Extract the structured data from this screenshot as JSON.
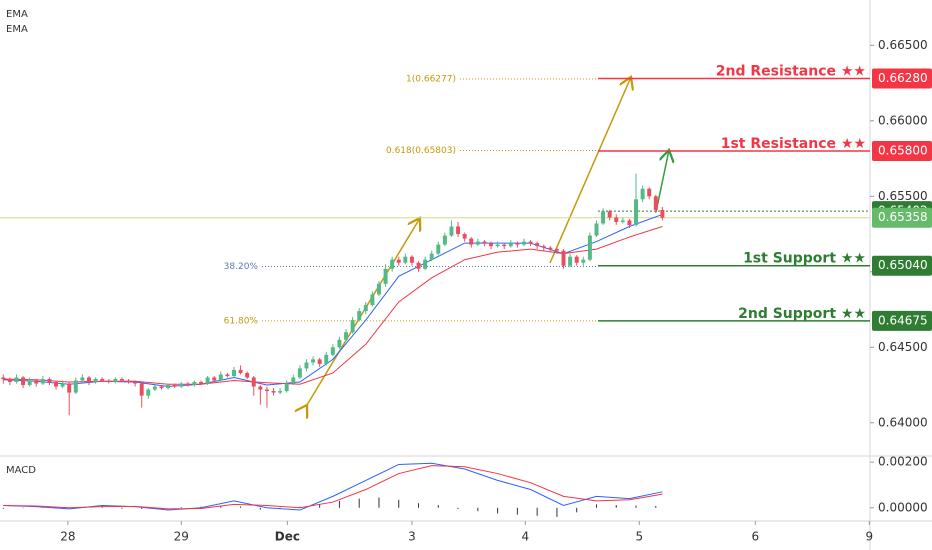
{
  "chart_data": {
    "type": "candlestick",
    "indicator_labels": [
      "EMA",
      "EMA"
    ],
    "xlim": [
      -0.5,
      131.5
    ],
    "xticks": [
      {
        "value": 9.8,
        "label": "28"
      },
      {
        "value": 27,
        "label": "29"
      },
      {
        "value": 43.1,
        "label": "Dec"
      },
      {
        "value": 62,
        "label": "3"
      },
      {
        "value": 79.2,
        "label": "4"
      },
      {
        "value": 96.5,
        "label": "5"
      },
      {
        "value": 114.1,
        "label": "6"
      },
      {
        "value": 131.4,
        "label": "9"
      }
    ],
    "ylim": [
      0.6378,
      0.668
    ],
    "yticks": [
      {
        "value": 0.665,
        "label": "0.66500"
      },
      {
        "value": 0.66,
        "label": "0.66000"
      },
      {
        "value": 0.655,
        "label": "0.65500"
      },
      {
        "value": 0.65,
        "label": "0.65000"
      },
      {
        "value": 0.645,
        "label": "0.64500"
      },
      {
        "value": 0.64,
        "label": "0.64000"
      }
    ],
    "up_color": "#53b987",
    "down_color": "#eb4d5c",
    "ohlc": [
      [
        0.643,
        0.6432,
        0.6426,
        0.6429
      ],
      [
        0.6429,
        0.643,
        0.6425,
        0.6427
      ],
      [
        0.6427,
        0.6432,
        0.6426,
        0.643
      ],
      [
        0.643,
        0.6431,
        0.6423,
        0.6425
      ],
      [
        0.6425,
        0.643,
        0.6424,
        0.6428
      ],
      [
        0.6428,
        0.6429,
        0.6424,
        0.6426
      ],
      [
        0.6426,
        0.6431,
        0.6425,
        0.6429
      ],
      [
        0.6429,
        0.643,
        0.6425,
        0.6427
      ],
      [
        0.6427,
        0.6428,
        0.6422,
        0.6424
      ],
      [
        0.6424,
        0.6428,
        0.6423,
        0.6426
      ],
      [
        0.6426,
        0.6427,
        0.6405,
        0.642
      ],
      [
        0.642,
        0.643,
        0.6419,
        0.6428
      ],
      [
        0.6428,
        0.6432,
        0.6427,
        0.643
      ],
      [
        0.643,
        0.6431,
        0.6425,
        0.6427
      ],
      [
        0.6427,
        0.643,
        0.6426,
        0.6429
      ],
      [
        0.6429,
        0.643,
        0.6427,
        0.6428
      ],
      [
        0.6428,
        0.6429,
        0.6426,
        0.6427
      ],
      [
        0.6427,
        0.643,
        0.6426,
        0.6429
      ],
      [
        0.6429,
        0.643,
        0.6427,
        0.6428
      ],
      [
        0.6428,
        0.6429,
        0.6426,
        0.6427
      ],
      [
        0.6427,
        0.6428,
        0.6424,
        0.6426
      ],
      [
        0.6426,
        0.6427,
        0.641,
        0.6418
      ],
      [
        0.6418,
        0.6423,
        0.6416,
        0.6422
      ],
      [
        0.6422,
        0.6425,
        0.6421,
        0.6424
      ],
      [
        0.6424,
        0.6425,
        0.6422,
        0.6423
      ],
      [
        0.6423,
        0.6426,
        0.6422,
        0.6425
      ],
      [
        0.6425,
        0.6426,
        0.6423,
        0.6424
      ],
      [
        0.6424,
        0.6427,
        0.6423,
        0.6426
      ],
      [
        0.6426,
        0.6427,
        0.6424,
        0.6425
      ],
      [
        0.6425,
        0.6428,
        0.6424,
        0.6427
      ],
      [
        0.6427,
        0.6428,
        0.6425,
        0.6426
      ],
      [
        0.6426,
        0.6431,
        0.6425,
        0.643
      ],
      [
        0.643,
        0.6431,
        0.6427,
        0.6428
      ],
      [
        0.6428,
        0.6434,
        0.6427,
        0.6432
      ],
      [
        0.6432,
        0.6433,
        0.643,
        0.6431
      ],
      [
        0.6431,
        0.6437,
        0.643,
        0.6435
      ],
      [
        0.6435,
        0.6438,
        0.6432,
        0.6433
      ],
      [
        0.6433,
        0.6434,
        0.6429,
        0.643
      ],
      [
        0.643,
        0.6431,
        0.6418,
        0.6424
      ],
      [
        0.6424,
        0.6425,
        0.6412,
        0.6422
      ],
      [
        0.6422,
        0.6424,
        0.641,
        0.6421
      ],
      [
        0.6421,
        0.6423,
        0.6418,
        0.642
      ],
      [
        0.642,
        0.6423,
        0.6419,
        0.6421
      ],
      [
        0.6421,
        0.6428,
        0.642,
        0.6426
      ],
      [
        0.6426,
        0.6432,
        0.6425,
        0.643
      ],
      [
        0.643,
        0.6438,
        0.6429,
        0.6436
      ],
      [
        0.6436,
        0.6442,
        0.6434,
        0.644
      ],
      [
        0.644,
        0.6444,
        0.6438,
        0.6442
      ],
      [
        0.6442,
        0.6443,
        0.6437,
        0.6439
      ],
      [
        0.6439,
        0.6447,
        0.6438,
        0.6445
      ],
      [
        0.6445,
        0.6452,
        0.6444,
        0.645
      ],
      [
        0.645,
        0.6457,
        0.6449,
        0.6455
      ],
      [
        0.6455,
        0.6462,
        0.6454,
        0.646
      ],
      [
        0.646,
        0.647,
        0.6459,
        0.6468
      ],
      [
        0.6468,
        0.6476,
        0.6467,
        0.6474
      ],
      [
        0.6474,
        0.648,
        0.6472,
        0.6478
      ],
      [
        0.6478,
        0.6487,
        0.6477,
        0.6485
      ],
      [
        0.6485,
        0.6494,
        0.6484,
        0.6492
      ],
      [
        0.6492,
        0.6505,
        0.649,
        0.6502
      ],
      [
        0.6502,
        0.651,
        0.65,
        0.6508
      ],
      [
        0.6508,
        0.651,
        0.6504,
        0.6506
      ],
      [
        0.6506,
        0.6512,
        0.6505,
        0.651
      ],
      [
        0.651,
        0.6511,
        0.6504,
        0.6506
      ],
      [
        0.6506,
        0.6507,
        0.65,
        0.6502
      ],
      [
        0.6502,
        0.651,
        0.6501,
        0.6508
      ],
      [
        0.6508,
        0.6514,
        0.6507,
        0.6512
      ],
      [
        0.6512,
        0.652,
        0.6511,
        0.6518
      ],
      [
        0.6518,
        0.6526,
        0.6517,
        0.6524
      ],
      [
        0.6524,
        0.6534,
        0.6523,
        0.653
      ],
      [
        0.653,
        0.6533,
        0.6523,
        0.6525
      ],
      [
        0.6525,
        0.6526,
        0.652,
        0.6522
      ],
      [
        0.6522,
        0.6523,
        0.6516,
        0.6518
      ],
      [
        0.6518,
        0.6522,
        0.6517,
        0.652
      ],
      [
        0.652,
        0.6521,
        0.6517,
        0.6519
      ],
      [
        0.6519,
        0.652,
        0.6515,
        0.6517
      ],
      [
        0.6517,
        0.652,
        0.6516,
        0.6518
      ],
      [
        0.6518,
        0.6519,
        0.6515,
        0.6517
      ],
      [
        0.6517,
        0.6521,
        0.6516,
        0.6519
      ],
      [
        0.6519,
        0.652,
        0.6516,
        0.6518
      ],
      [
        0.6518,
        0.6522,
        0.6517,
        0.652
      ],
      [
        0.652,
        0.6521,
        0.6517,
        0.6519
      ],
      [
        0.6519,
        0.652,
        0.6515,
        0.6517
      ],
      [
        0.6517,
        0.6518,
        0.6514,
        0.6516
      ],
      [
        0.6516,
        0.6517,
        0.6513,
        0.6515
      ],
      [
        0.6515,
        0.6516,
        0.6512,
        0.6514
      ],
      [
        0.6514,
        0.6515,
        0.6502,
        0.6504
      ],
      [
        0.6504,
        0.6512,
        0.6503,
        0.651
      ],
      [
        0.651,
        0.6511,
        0.6504,
        0.6506
      ],
      [
        0.6506,
        0.651,
        0.6504,
        0.6508
      ],
      [
        0.6508,
        0.6526,
        0.6507,
        0.6524
      ],
      [
        0.6524,
        0.6534,
        0.6523,
        0.6532
      ],
      [
        0.6532,
        0.6542,
        0.6531,
        0.654
      ],
      [
        0.654,
        0.6541,
        0.6534,
        0.6536
      ],
      [
        0.6536,
        0.6538,
        0.6531,
        0.6533
      ],
      [
        0.6533,
        0.6536,
        0.6532,
        0.6534
      ],
      [
        0.6534,
        0.6535,
        0.6529,
        0.6531
      ],
      [
        0.6531,
        0.6565,
        0.653,
        0.6548
      ],
      [
        0.6548,
        0.6557,
        0.6546,
        0.6555
      ],
      [
        0.6555,
        0.6556,
        0.6548,
        0.655
      ],
      [
        0.655,
        0.6551,
        0.6539,
        0.6541
      ],
      [
        0.6541,
        0.6543,
        0.6534,
        0.65358
      ]
    ],
    "ema": [
      {
        "color": "#2962ff",
        "x": [
          0,
          5,
          10,
          15,
          20,
          25,
          30,
          35,
          40,
          45,
          50,
          55,
          60,
          65,
          70,
          75,
          80,
          85,
          90,
          95,
          100
        ],
        "values": [
          0.64285,
          0.64275,
          0.64255,
          0.64275,
          0.6427,
          0.6424,
          0.64255,
          0.643,
          0.6425,
          0.6427,
          0.6442,
          0.6468,
          0.6497,
          0.6508,
          0.6519,
          0.6519,
          0.6519,
          0.6512,
          0.652,
          0.653,
          0.6538
        ]
      },
      {
        "color": "#f23645",
        "x": [
          0,
          5,
          10,
          15,
          20,
          25,
          30,
          35,
          40,
          45,
          50,
          55,
          60,
          65,
          70,
          75,
          80,
          85,
          90,
          95,
          100
        ],
        "values": [
          0.6429,
          0.64285,
          0.6427,
          0.64275,
          0.64275,
          0.64255,
          0.64255,
          0.6428,
          0.64265,
          0.64255,
          0.6433,
          0.6452,
          0.648,
          0.6496,
          0.6508,
          0.6513,
          0.6515,
          0.6512,
          0.6515,
          0.6523,
          0.653
        ]
      }
    ],
    "levels": [
      {
        "label": "2nd Resistance ★★",
        "value": 0.6628,
        "value_label": "0.66280",
        "color": "#f23645"
      },
      {
        "label": "1st Resistance ★★",
        "value": 0.658,
        "value_label": "0.65800",
        "color": "#f23645"
      },
      {
        "label": "1st Support ★★",
        "value": 0.6504,
        "value_label": "0.65040",
        "color": "#2e7d32"
      },
      {
        "label": "2nd Support ★★",
        "value": 0.64675,
        "value_label": "0.64675",
        "color": "#2e7d32"
      }
    ],
    "fib_levels": [
      {
        "label": "1(0.66277)",
        "value": 0.66277,
        "color": "#c49a0a"
      },
      {
        "label": "0.618(0.65803)",
        "value": 0.65803,
        "color": "#c49a0a"
      },
      {
        "label": "38.20%",
        "value": 0.65035,
        "color": "#5b7bb5"
      },
      {
        "label": "61.80%",
        "value": 0.64675,
        "color": "#c49a0a"
      }
    ],
    "price_tags": [
      {
        "value": 0.65402,
        "color": "#2e7d32"
      },
      {
        "value": 0.65358,
        "color": "#66bb6a"
      }
    ],
    "macd": {
      "title": "MACD",
      "ylim": [
        -0.00058,
        0.00227
      ],
      "yticks": [
        {
          "value": 0.002,
          "label": "0.00200"
        },
        {
          "value": 0,
          "label": "0.00000"
        }
      ],
      "series": [
        {
          "color": "#2962ff",
          "x": [
            0,
            5,
            10,
            15,
            20,
            25,
            30,
            35,
            40,
            45,
            50,
            55,
            60,
            65,
            70,
            75,
            80,
            85,
            90,
            95,
            100
          ],
          "values": [
            0.0001,
            5e-05,
            -5e-05,
            0.0001,
            5e-05,
            -0.0001,
            0,
            0.0003,
            0,
            -0.0001,
            0.0005,
            0.0012,
            0.0019,
            0.00195,
            0.0017,
            0.0012,
            0.0008,
            0.0001,
            0.0005,
            0.0004,
            0.0007
          ]
        },
        {
          "color": "#f23645",
          "x": [
            0,
            5,
            10,
            15,
            20,
            25,
            30,
            35,
            40,
            45,
            50,
            55,
            60,
            65,
            70,
            75,
            80,
            85,
            90,
            95,
            100
          ],
          "values": [
            0.0001,
            8e-05,
            0,
            5e-05,
            6e-05,
            -5e-05,
            -3e-05,
            0.00015,
            0.0001,
            0,
            0.00025,
            0.0008,
            0.0015,
            0.00185,
            0.0018,
            0.0015,
            0.0011,
            0.0005,
            0.0003,
            0.00035,
            0.0006
          ]
        }
      ],
      "histogram": {
        "color": "#333333",
        "x": [
          0,
          3,
          6,
          9,
          12,
          15,
          18,
          21,
          24,
          27,
          30,
          33,
          36,
          39,
          42,
          45,
          48,
          51,
          54,
          57,
          60,
          63,
          66,
          69,
          72,
          75,
          78,
          81,
          84,
          87,
          90,
          93,
          96,
          99
        ],
        "values": [
          0,
          -2e-05,
          2e-05,
          -3e-05,
          3e-05,
          4e-05,
          0,
          -5e-05,
          -4e-05,
          3e-05,
          5e-05,
          0.0001,
          6e-05,
          -8e-05,
          -6e-05,
          5e-05,
          0.00015,
          0.0003,
          0.0004,
          0.00045,
          0.00035,
          0.0002,
          0.00012,
          -5e-05,
          -0.00015,
          -0.00025,
          -0.0003,
          -0.00035,
          -0.0004,
          -0.0002,
          0.00015,
          0.00012,
          0.0001,
          8e-05
        ]
      }
    }
  }
}
